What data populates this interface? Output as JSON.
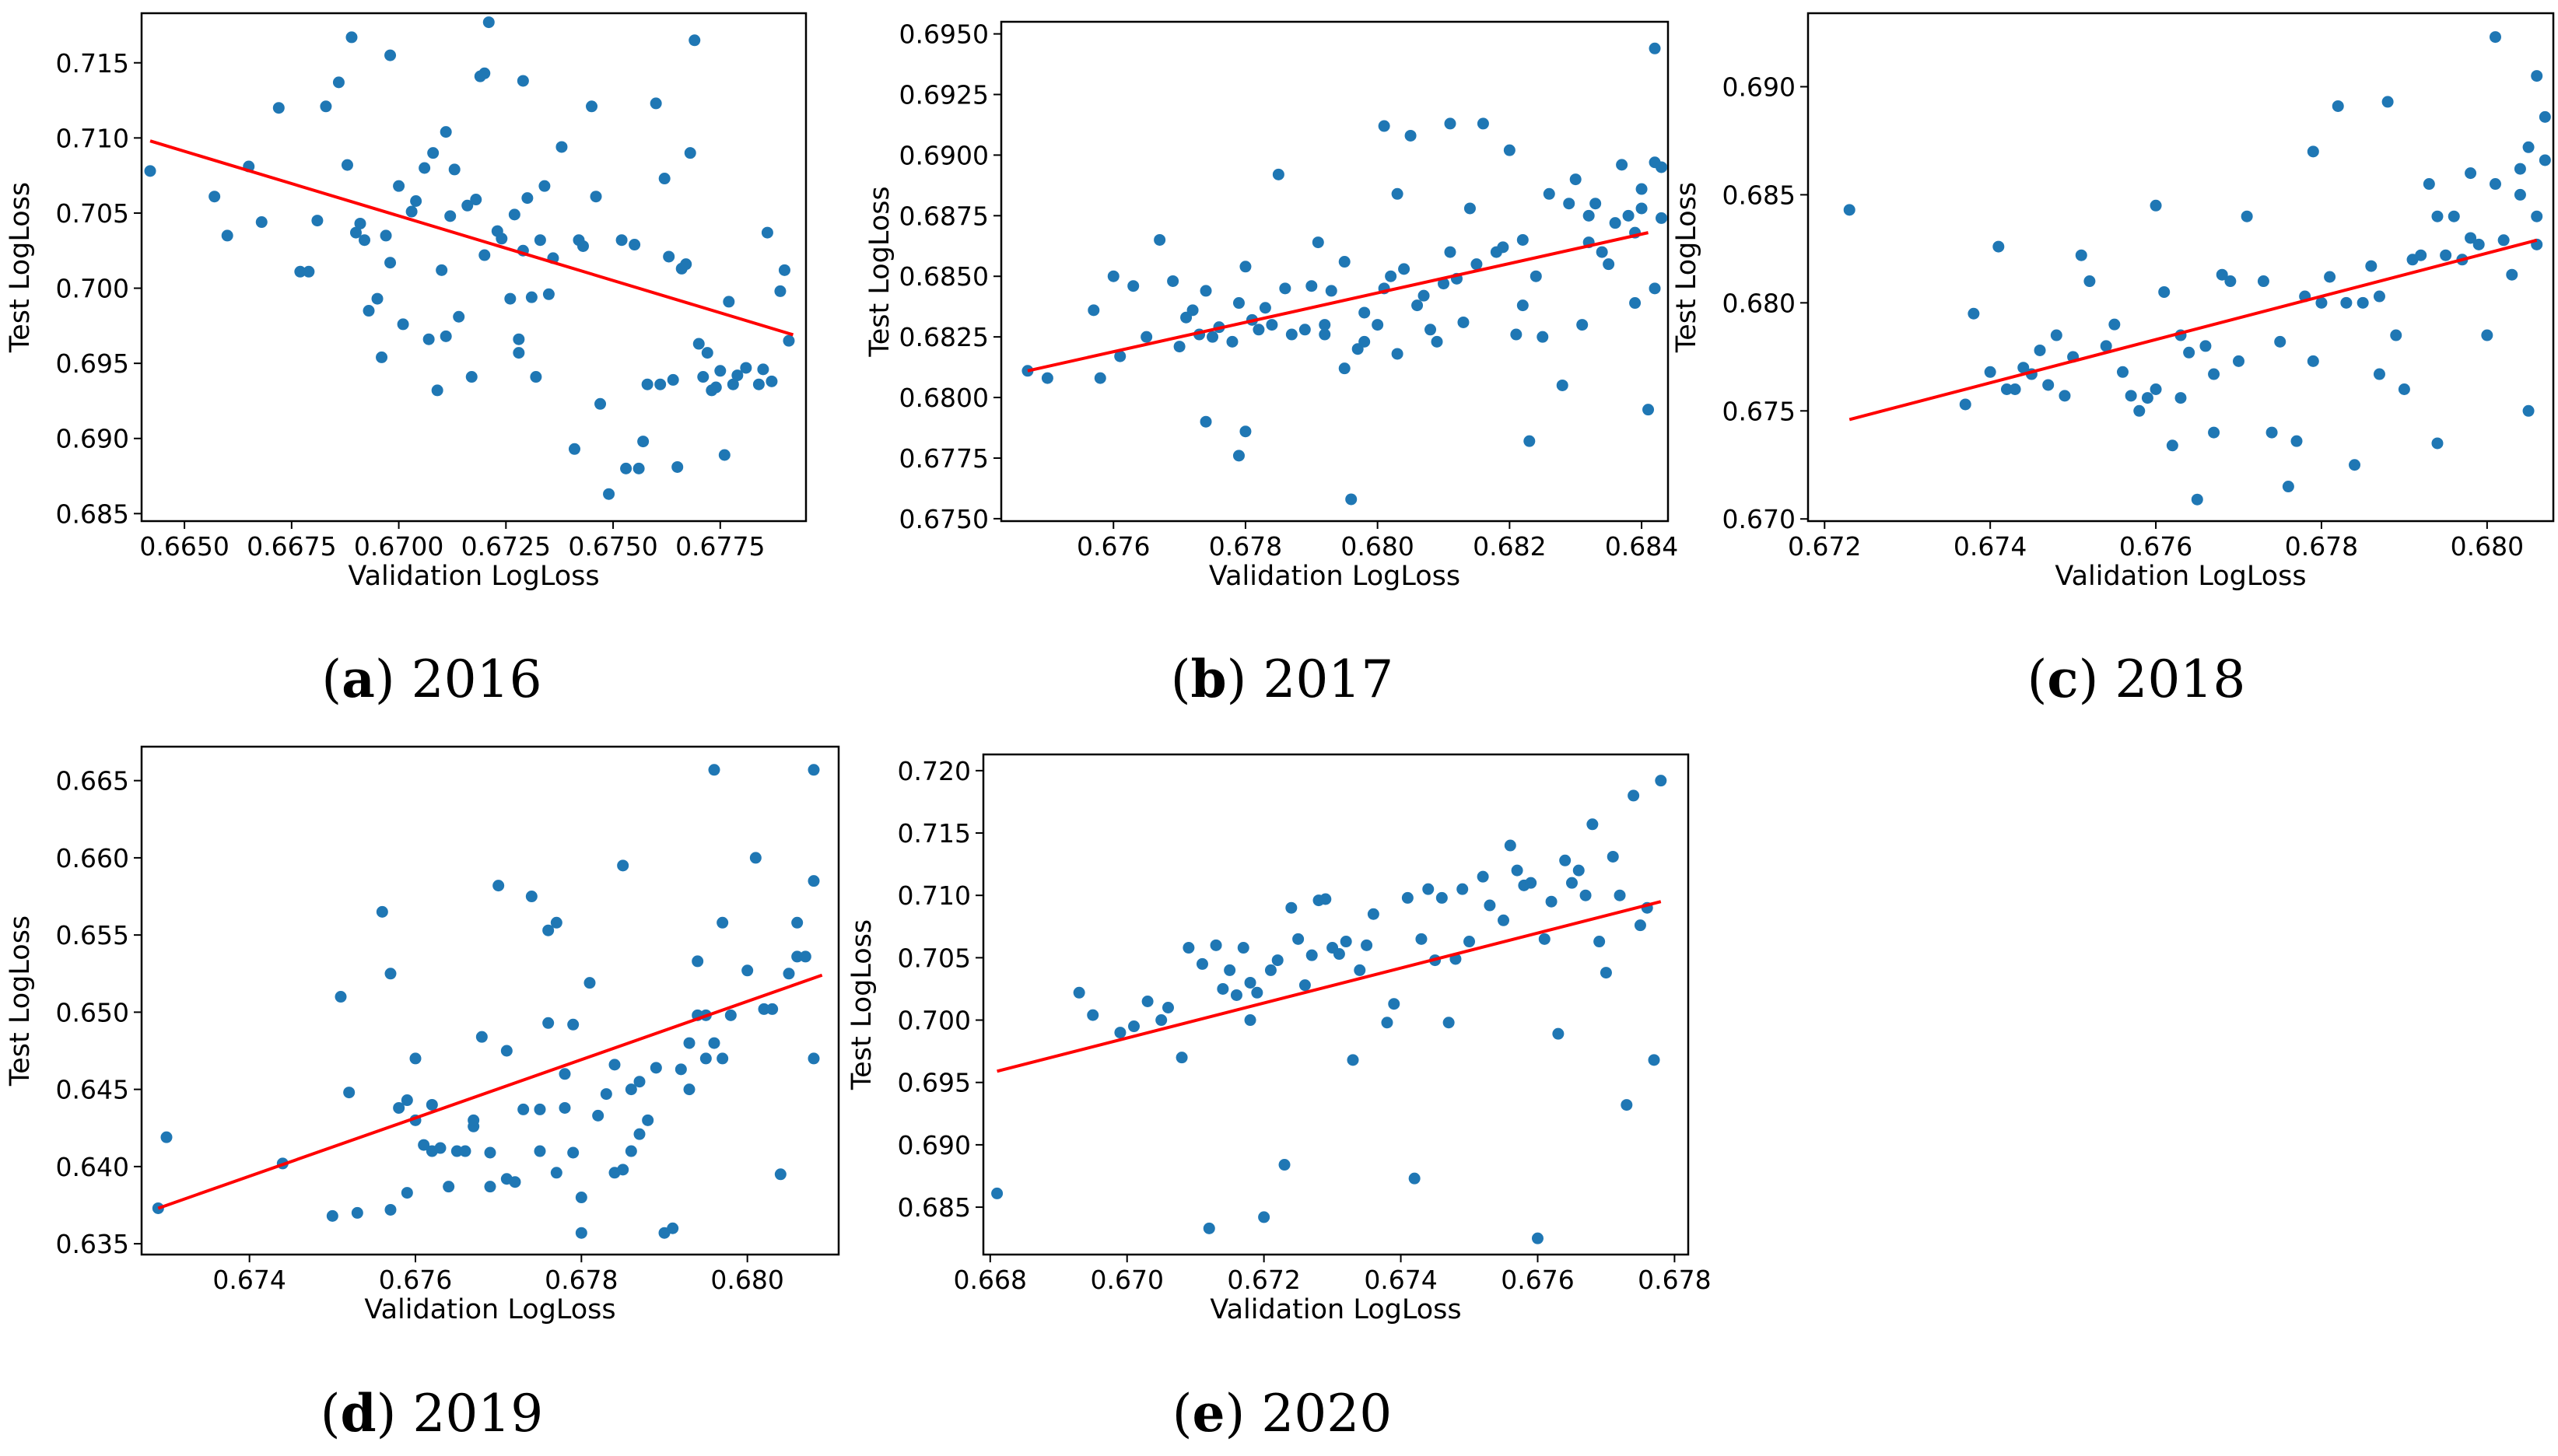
{
  "colors": {
    "point": "#1f77b4",
    "fit_line": "#ff0000",
    "axes": "#000000",
    "background": "#ffffff"
  },
  "chart_data": [
    {
      "id": "a",
      "type": "scatter",
      "caption_letter": "a",
      "caption_year": "2016",
      "xlabel": "Validation LogLoss",
      "ylabel": "Test LogLoss",
      "xlim": [
        0.664,
        0.6795
      ],
      "ylim": [
        0.6845,
        0.7183
      ],
      "xticks": [
        "0.6650",
        "0.6675",
        "0.6700",
        "0.6725",
        "0.6750",
        "0.6775"
      ],
      "yticks": [
        "0.685",
        "0.690",
        "0.695",
        "0.700",
        "0.705",
        "0.710",
        "0.715"
      ],
      "fit_line": {
        "x": [
          0.6642,
          0.6792
        ],
        "y": [
          0.7098,
          0.6969
        ]
      },
      "x": [
        0.6642,
        0.6657,
        0.666,
        0.6665,
        0.6668,
        0.6672,
        0.6677,
        0.6679,
        0.6681,
        0.6683,
        0.6686,
        0.6688,
        0.6689,
        0.669,
        0.6691,
        0.6692,
        0.6693,
        0.6695,
        0.6696,
        0.6697,
        0.6698,
        0.6698,
        0.67,
        0.6701,
        0.6703,
        0.6704,
        0.6706,
        0.6707,
        0.6708,
        0.6709,
        0.671,
        0.6711,
        0.6711,
        0.6712,
        0.6713,
        0.6714,
        0.6716,
        0.6717,
        0.6718,
        0.6719,
        0.672,
        0.672,
        0.6721,
        0.6723,
        0.6724,
        0.6726,
        0.6727,
        0.6728,
        0.6728,
        0.6729,
        0.6729,
        0.673,
        0.6731,
        0.6732,
        0.6733,
        0.6734,
        0.6735,
        0.6736,
        0.6738,
        0.6741,
        0.6742,
        0.6743,
        0.6745,
        0.6746,
        0.6747,
        0.6749,
        0.6752,
        0.6753,
        0.6755,
        0.6756,
        0.6757,
        0.6758,
        0.676,
        0.6761,
        0.6762,
        0.6763,
        0.6764,
        0.6765,
        0.6766,
        0.6767,
        0.6768,
        0.6769,
        0.677,
        0.6771,
        0.6772,
        0.6773,
        0.6774,
        0.6775,
        0.6776,
        0.6777,
        0.6778,
        0.6779,
        0.6781,
        0.6784,
        0.6785,
        0.6786,
        0.6787,
        0.6789,
        0.679,
        0.6791
      ],
      "y": [
        0.7078,
        0.7061,
        0.7035,
        0.7081,
        0.7044,
        0.712,
        0.7011,
        0.7011,
        0.7045,
        0.7121,
        0.7137,
        0.7082,
        0.7167,
        0.7037,
        0.7043,
        0.7032,
        0.6985,
        0.6993,
        0.6954,
        0.7035,
        0.7017,
        0.7155,
        0.7068,
        0.6976,
        0.7051,
        0.7058,
        0.708,
        0.6966,
        0.709,
        0.6932,
        0.7012,
        0.6968,
        0.7104,
        0.7048,
        0.7079,
        0.6981,
        0.7055,
        0.6941,
        0.7059,
        0.7141,
        0.7022,
        0.7143,
        0.7177,
        0.7038,
        0.7033,
        0.6993,
        0.7049,
        0.6966,
        0.6957,
        0.7138,
        0.7025,
        0.706,
        0.6994,
        0.6941,
        0.7032,
        0.7068,
        0.6996,
        0.702,
        0.7094,
        0.6893,
        0.7032,
        0.7028,
        0.7121,
        0.7061,
        0.6923,
        0.6863,
        0.7032,
        0.688,
        0.7029,
        0.688,
        0.6898,
        0.6936,
        0.7123,
        0.6936,
        0.7073,
        0.7021,
        0.6939,
        0.6881,
        0.7013,
        0.7016,
        0.709,
        0.7165,
        0.6963,
        0.6941,
        0.6957,
        0.6932,
        0.6934,
        0.6945,
        0.6889,
        0.6991,
        0.6936,
        0.6942,
        0.6947,
        0.6936,
        0.6946,
        0.7037,
        0.6938,
        0.6998,
        0.7012,
        0.6965
      ]
    },
    {
      "id": "b",
      "type": "scatter",
      "caption_letter": "b",
      "caption_year": "2017",
      "xlabel": "Validation LogLoss",
      "ylabel": "Test LogLoss",
      "xlim": [
        0.6743,
        0.6844
      ],
      "ylim": [
        0.6749,
        0.6955
      ],
      "xticks": [
        "0.676",
        "0.678",
        "0.680",
        "0.682",
        "0.684"
      ],
      "yticks": [
        "0.6750",
        "0.6775",
        "0.6800",
        "0.6825",
        "0.6850",
        "0.6875",
        "0.6900",
        "0.6925",
        "0.6950"
      ],
      "fit_line": {
        "x": [
          0.6747,
          0.6841
        ],
        "y": [
          0.6811,
          0.6868
        ]
      },
      "x": [
        0.6747,
        0.675,
        0.6757,
        0.6758,
        0.676,
        0.6761,
        0.6763,
        0.6765,
        0.6767,
        0.6769,
        0.677,
        0.6771,
        0.6772,
        0.6773,
        0.6774,
        0.6774,
        0.6775,
        0.6776,
        0.6778,
        0.6779,
        0.6779,
        0.678,
        0.678,
        0.6781,
        0.6782,
        0.6783,
        0.6784,
        0.6785,
        0.6786,
        0.6787,
        0.6789,
        0.679,
        0.6791,
        0.6792,
        0.6792,
        0.6793,
        0.6795,
        0.6795,
        0.6796,
        0.6797,
        0.6798,
        0.6798,
        0.68,
        0.6801,
        0.6801,
        0.6802,
        0.6803,
        0.6803,
        0.6804,
        0.6805,
        0.6806,
        0.6807,
        0.6808,
        0.6809,
        0.681,
        0.6811,
        0.6811,
        0.6812,
        0.6813,
        0.6814,
        0.6815,
        0.6816,
        0.6818,
        0.6819,
        0.682,
        0.6821,
        0.6822,
        0.6822,
        0.6823,
        0.6824,
        0.6825,
        0.6826,
        0.6828,
        0.6829,
        0.683,
        0.6831,
        0.6832,
        0.6832,
        0.6833,
        0.6834,
        0.6835,
        0.6836,
        0.6837,
        0.6838,
        0.6839,
        0.6839,
        0.684,
        0.684,
        0.6841,
        0.6842,
        0.6842,
        0.6842,
        0.6843,
        0.6843
      ],
      "y": [
        0.6811,
        0.6808,
        0.6836,
        0.6808,
        0.685,
        0.6817,
        0.6846,
        0.6825,
        0.6865,
        0.6848,
        0.6821,
        0.6833,
        0.6836,
        0.6826,
        0.679,
        0.6844,
        0.6825,
        0.6829,
        0.6823,
        0.6776,
        0.6839,
        0.6786,
        0.6854,
        0.6832,
        0.6828,
        0.6837,
        0.683,
        0.6892,
        0.6845,
        0.6826,
        0.6828,
        0.6846,
        0.6864,
        0.6826,
        0.683,
        0.6844,
        0.6812,
        0.6856,
        0.6758,
        0.682,
        0.6835,
        0.6823,
        0.683,
        0.6912,
        0.6845,
        0.685,
        0.6884,
        0.6818,
        0.6853,
        0.6908,
        0.6838,
        0.6842,
        0.6828,
        0.6823,
        0.6847,
        0.686,
        0.6913,
        0.6849,
        0.6831,
        0.6878,
        0.6855,
        0.6913,
        0.686,
        0.6862,
        0.6902,
        0.6826,
        0.6838,
        0.6865,
        0.6782,
        0.685,
        0.6825,
        0.6884,
        0.6805,
        0.688,
        0.689,
        0.683,
        0.6875,
        0.6864,
        0.688,
        0.686,
        0.6855,
        0.6872,
        0.6896,
        0.6875,
        0.6868,
        0.6839,
        0.6878,
        0.6886,
        0.6795,
        0.6944,
        0.6845,
        0.6897,
        0.6895,
        0.6874
      ]
    },
    {
      "id": "c",
      "type": "scatter",
      "caption_letter": "c",
      "caption_year": "2018",
      "xlabel": "Validation LogLoss",
      "ylabel": "Test LogLoss",
      "xlim": [
        0.6718,
        0.6808
      ],
      "ylim": [
        0.6699,
        0.6934
      ],
      "xticks": [
        "0.672",
        "0.674",
        "0.676",
        "0.678",
        "0.680"
      ],
      "yticks": [
        "0.670",
        "0.675",
        "0.680",
        "0.685",
        "0.690"
      ],
      "fit_line": {
        "x": [
          0.6723,
          0.6806
        ],
        "y": [
          0.6746,
          0.6829
        ]
      },
      "x": [
        0.6723,
        0.6737,
        0.6738,
        0.674,
        0.6741,
        0.6742,
        0.6743,
        0.6744,
        0.6745,
        0.6746,
        0.6747,
        0.6748,
        0.6749,
        0.675,
        0.6751,
        0.6752,
        0.6754,
        0.6755,
        0.6756,
        0.6757,
        0.6758,
        0.6759,
        0.676,
        0.676,
        0.6761,
        0.6762,
        0.6763,
        0.6763,
        0.6764,
        0.6765,
        0.6766,
        0.6767,
        0.6767,
        0.6768,
        0.6769,
        0.677,
        0.6771,
        0.6773,
        0.6774,
        0.6775,
        0.6776,
        0.6777,
        0.6778,
        0.6779,
        0.6779,
        0.678,
        0.6781,
        0.6782,
        0.6783,
        0.6784,
        0.6785,
        0.6786,
        0.6787,
        0.6787,
        0.6788,
        0.6789,
        0.679,
        0.6791,
        0.6792,
        0.6793,
        0.6794,
        0.6794,
        0.6795,
        0.6796,
        0.6797,
        0.6798,
        0.6798,
        0.6799,
        0.68,
        0.6801,
        0.6801,
        0.6802,
        0.6803,
        0.6804,
        0.6804,
        0.6805,
        0.6805,
        0.6806,
        0.6806,
        0.6806,
        0.6807,
        0.6807
      ],
      "y": [
        0.6843,
        0.6753,
        0.6795,
        0.6768,
        0.6826,
        0.676,
        0.676,
        0.677,
        0.6767,
        0.6778,
        0.6762,
        0.6785,
        0.6757,
        0.6775,
        0.6822,
        0.681,
        0.678,
        0.679,
        0.6768,
        0.6757,
        0.675,
        0.6756,
        0.676,
        0.6845,
        0.6805,
        0.6734,
        0.6756,
        0.6785,
        0.6777,
        0.6709,
        0.678,
        0.674,
        0.6767,
        0.6813,
        0.681,
        0.6773,
        0.684,
        0.681,
        0.674,
        0.6782,
        0.6715,
        0.6736,
        0.6803,
        0.687,
        0.6773,
        0.68,
        0.6812,
        0.6891,
        0.68,
        0.6725,
        0.68,
        0.6817,
        0.6767,
        0.6803,
        0.6893,
        0.6785,
        0.676,
        0.682,
        0.6822,
        0.6855,
        0.684,
        0.6735,
        0.6822,
        0.684,
        0.682,
        0.683,
        0.686,
        0.6827,
        0.6785,
        0.6855,
        0.6923,
        0.6829,
        0.6813,
        0.6862,
        0.685,
        0.6872,
        0.675,
        0.6827,
        0.6905,
        0.684,
        0.6866,
        0.6886
      ]
    },
    {
      "id": "d",
      "type": "scatter",
      "caption_letter": "d",
      "caption_year": "2019",
      "xlabel": "Validation LogLoss",
      "ylabel": "Test LogLoss",
      "xlim": [
        0.6727,
        0.6811
      ],
      "ylim": [
        0.6343,
        0.6672
      ],
      "xticks": [
        "0.674",
        "0.676",
        "0.678",
        "0.680"
      ],
      "yticks": [
        "0.635",
        "0.640",
        "0.645",
        "0.650",
        "0.655",
        "0.660",
        "0.665"
      ],
      "fit_line": {
        "x": [
          0.6729,
          0.6809
        ],
        "y": [
          0.6373,
          0.6524
        ]
      },
      "x": [
        0.6729,
        0.673,
        0.6744,
        0.675,
        0.6751,
        0.6752,
        0.6753,
        0.6756,
        0.6757,
        0.6757,
        0.6758,
        0.6759,
        0.6759,
        0.676,
        0.676,
        0.6761,
        0.6762,
        0.6762,
        0.6763,
        0.6764,
        0.6765,
        0.6766,
        0.6767,
        0.6767,
        0.6768,
        0.6769,
        0.6769,
        0.677,
        0.6771,
        0.6771,
        0.6772,
        0.6773,
        0.6774,
        0.6775,
        0.6775,
        0.6776,
        0.6776,
        0.6777,
        0.6777,
        0.6778,
        0.6778,
        0.6779,
        0.6779,
        0.678,
        0.678,
        0.6781,
        0.6782,
        0.6783,
        0.6784,
        0.6784,
        0.6785,
        0.6785,
        0.6786,
        0.6786,
        0.6787,
        0.6787,
        0.6788,
        0.6789,
        0.679,
        0.6791,
        0.6792,
        0.6793,
        0.6793,
        0.6794,
        0.6794,
        0.6795,
        0.6795,
        0.6796,
        0.6796,
        0.6797,
        0.6797,
        0.6798,
        0.68,
        0.6801,
        0.6802,
        0.6803,
        0.6804,
        0.6805,
        0.6806,
        0.6806,
        0.6807,
        0.6808,
        0.6808,
        0.6808
      ],
      "y": [
        0.6373,
        0.6419,
        0.6402,
        0.6368,
        0.651,
        0.6448,
        0.637,
        0.6565,
        0.6372,
        0.6525,
        0.6438,
        0.6443,
        0.6383,
        0.643,
        0.647,
        0.6414,
        0.641,
        0.644,
        0.6412,
        0.6387,
        0.641,
        0.641,
        0.6426,
        0.643,
        0.6484,
        0.6387,
        0.6409,
        0.6582,
        0.6475,
        0.6392,
        0.639,
        0.6437,
        0.6575,
        0.641,
        0.6437,
        0.6493,
        0.6553,
        0.6396,
        0.6558,
        0.6438,
        0.646,
        0.6409,
        0.6492,
        0.6357,
        0.638,
        0.6519,
        0.6433,
        0.6447,
        0.6396,
        0.6466,
        0.6398,
        0.6595,
        0.645,
        0.641,
        0.6421,
        0.6455,
        0.643,
        0.6464,
        0.6357,
        0.636,
        0.6463,
        0.645,
        0.648,
        0.6533,
        0.6498,
        0.647,
        0.6498,
        0.648,
        0.6657,
        0.647,
        0.6558,
        0.6498,
        0.6527,
        0.66,
        0.6502,
        0.6502,
        0.6395,
        0.6525,
        0.6558,
        0.6536,
        0.6536,
        0.6657,
        0.6585,
        0.647
      ]
    },
    {
      "id": "e",
      "type": "scatter",
      "caption_letter": "e",
      "caption_year": "2020",
      "xlabel": "Validation LogLoss",
      "ylabel": "Test LogLoss",
      "xlim": [
        0.6679,
        0.6782
      ],
      "ylim": [
        0.6812,
        0.7213
      ],
      "xticks": [
        "0.668",
        "0.670",
        "0.672",
        "0.674",
        "0.676",
        "0.678"
      ],
      "yticks": [
        "0.685",
        "0.690",
        "0.695",
        "0.700",
        "0.705",
        "0.710",
        "0.715",
        "0.720"
      ],
      "fit_line": {
        "x": [
          0.6681,
          0.6778
        ],
        "y": [
          0.6959,
          0.7095
        ]
      },
      "x": [
        0.6681,
        0.6693,
        0.6695,
        0.6699,
        0.6701,
        0.6703,
        0.6705,
        0.6706,
        0.6708,
        0.6709,
        0.6711,
        0.6712,
        0.6713,
        0.6714,
        0.6715,
        0.6716,
        0.6717,
        0.6718,
        0.6718,
        0.6719,
        0.672,
        0.6721,
        0.6722,
        0.6723,
        0.6724,
        0.6725,
        0.6726,
        0.6727,
        0.6728,
        0.6729,
        0.673,
        0.6731,
        0.6732,
        0.6733,
        0.6734,
        0.6735,
        0.6736,
        0.6738,
        0.6739,
        0.6741,
        0.6742,
        0.6743,
        0.6744,
        0.6745,
        0.6746,
        0.6747,
        0.6748,
        0.6749,
        0.675,
        0.6752,
        0.6753,
        0.6755,
        0.6756,
        0.6757,
        0.6758,
        0.6759,
        0.676,
        0.6761,
        0.6762,
        0.6763,
        0.6764,
        0.6765,
        0.6766,
        0.6767,
        0.6768,
        0.6769,
        0.677,
        0.6771,
        0.6772,
        0.6773,
        0.6774,
        0.6775,
        0.6776,
        0.6777,
        0.6778
      ],
      "y": [
        0.6861,
        0.7022,
        0.7004,
        0.699,
        0.6995,
        0.7015,
        0.7,
        0.701,
        0.697,
        0.7058,
        0.7045,
        0.6833,
        0.706,
        0.7025,
        0.704,
        0.702,
        0.7058,
        0.7,
        0.703,
        0.7022,
        0.6842,
        0.704,
        0.7048,
        0.6884,
        0.709,
        0.7065,
        0.7028,
        0.7052,
        0.7096,
        0.7097,
        0.7058,
        0.7053,
        0.7063,
        0.6968,
        0.704,
        0.706,
        0.7085,
        0.6998,
        0.7013,
        0.7098,
        0.6873,
        0.7065,
        0.7105,
        0.7048,
        0.7098,
        0.6998,
        0.7049,
        0.7105,
        0.7063,
        0.7115,
        0.7092,
        0.708,
        0.714,
        0.712,
        0.7108,
        0.711,
        0.6825,
        0.7065,
        0.7095,
        0.6989,
        0.7128,
        0.711,
        0.712,
        0.71,
        0.7157,
        0.7063,
        0.7038,
        0.7131,
        0.71,
        0.6932,
        0.718,
        0.7076,
        0.709,
        0.6968,
        0.7192
      ]
    }
  ]
}
